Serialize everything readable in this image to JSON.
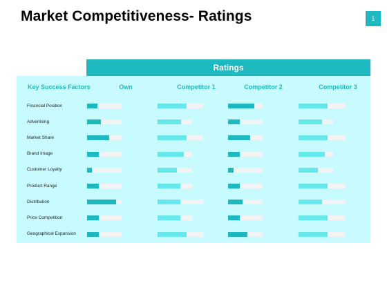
{
  "title": "Market Competitiveness- Ratings",
  "page_number": "1",
  "colors": {
    "accent": "#1eb8c0",
    "own_fill": "#1eb8c0",
    "competitor1_fill": "#66e8ed",
    "competitor2_fill": "#1eb8c0",
    "competitor3_fill": "#66e8ed",
    "track": "#f3f3f3",
    "table_background": "#c8fbfd"
  },
  "chart_data": {
    "type": "bar",
    "title": "Ratings",
    "row_header": "Key Success Factors",
    "categories": [
      "Financial Position",
      "Advertising",
      "Market Share",
      "Brand Image",
      "Customer Loyalty",
      "Product Range",
      "Distribution",
      "Price Competition",
      "Geographical Expansion"
    ],
    "series": [
      {
        "name": "Own",
        "max": [
          50,
          50,
          50,
          50,
          50,
          50,
          50,
          50,
          50
        ],
        "values": [
          15,
          20,
          32,
          17,
          7,
          17,
          42,
          17,
          17
        ]
      },
      {
        "name": "Competitor 1",
        "max": [
          66,
          50,
          66,
          50,
          50,
          50,
          66,
          50,
          66
        ],
        "values": [
          42,
          34,
          42,
          38,
          28,
          33,
          33,
          33,
          42
        ]
      },
      {
        "name": "Competitor 2",
        "max": [
          50,
          50,
          50,
          50,
          50,
          50,
          50,
          50,
          50
        ],
        "values": [
          38,
          17,
          32,
          17,
          8,
          17,
          21,
          17,
          28
        ]
      },
      {
        "name": "Competitor 3",
        "max": [
          68,
          50,
          68,
          50,
          50,
          68,
          68,
          68,
          68
        ],
        "values": [
          42,
          34,
          42,
          38,
          28,
          42,
          34,
          42,
          42
        ]
      }
    ]
  }
}
